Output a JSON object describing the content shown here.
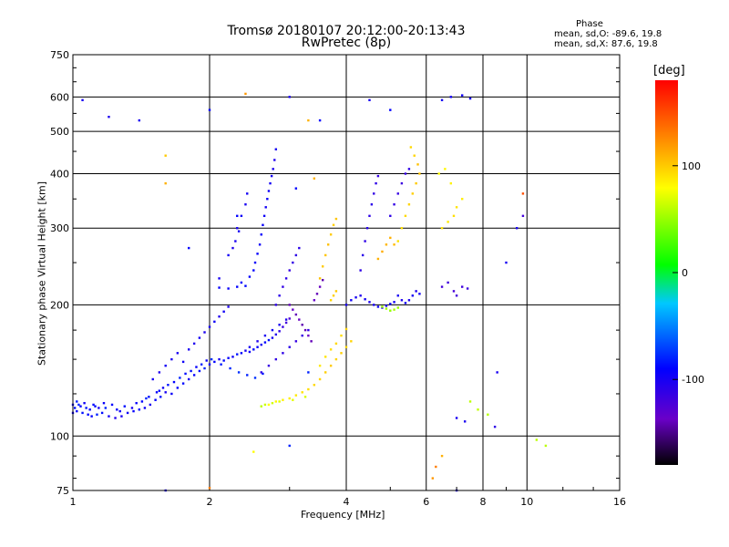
{
  "header": {
    "title_line1": "Tromsø 20180107 20:12:00-20:13:43",
    "title_line2": "RwPretec (8p)",
    "phase_heading": "Phase",
    "phase_o": "mean, sd,O: -89.6, 19.8",
    "phase_x": "mean, sd,X:  87.6, 19.8"
  },
  "colorbar": {
    "label": "[deg]",
    "ticks": [
      100,
      0,
      -100
    ],
    "range": [
      -180,
      180
    ],
    "colors": [
      "#000000",
      "#6a00c8",
      "#0000ff",
      "#00c8ff",
      "#00ff00",
      "#ffff00",
      "#ff8800",
      "#ff0000"
    ]
  },
  "chart_data": {
    "type": "scatter",
    "title": "Tromsø 20180107 20:12:00-20:13:43",
    "subtitle": "RwPretec (8p)",
    "xlabel": "Frequency [MHz]",
    "ylabel": "Stationary phase Virtual Height [km]",
    "x_scale": "log",
    "y_scale": "log",
    "xlim": [
      1,
      16
    ],
    "ylim": [
      75,
      750
    ],
    "x_ticks": [
      1,
      2,
      4,
      6,
      8,
      10,
      16
    ],
    "x_tick_labels": [
      "1",
      "2",
      "4",
      "6",
      "8",
      "10",
      "16"
    ],
    "y_ticks": [
      75,
      100,
      200,
      300,
      400,
      500,
      600,
      750
    ],
    "y_tick_labels": [
      "75",
      "100",
      "200",
      "300",
      "400",
      "500",
      "600",
      "750"
    ],
    "grid": true,
    "color_by": "phase [deg]",
    "points": [
      [
        1.0,
        113,
        -95
      ],
      [
        1.02,
        114,
        -90
      ],
      [
        1.05,
        113,
        -85
      ],
      [
        1.08,
        112,
        -88
      ],
      [
        1.1,
        111,
        -92
      ],
      [
        1.13,
        112,
        -80
      ],
      [
        1.16,
        113,
        -86
      ],
      [
        1.2,
        111,
        -98
      ],
      [
        1.24,
        110,
        -105
      ],
      [
        1.28,
        111,
        -100
      ],
      [
        1.32,
        113,
        -96
      ],
      [
        1.36,
        114,
        -92
      ],
      [
        1.4,
        115,
        -88
      ],
      [
        1.44,
        116,
        -95
      ],
      [
        1.48,
        118,
        -100
      ],
      [
        1.52,
        121,
        -90
      ],
      [
        1.56,
        123,
        -85
      ],
      [
        1.6,
        126,
        -100
      ],
      [
        1.65,
        125,
        -95
      ],
      [
        1.7,
        129,
        -90
      ],
      [
        1.75,
        132,
        -88
      ],
      [
        1.8,
        135,
        -100
      ],
      [
        1.85,
        138,
        -92
      ],
      [
        1.9,
        141,
        -86
      ],
      [
        1.95,
        143,
        -80
      ],
      [
        2.0,
        146,
        -95
      ],
      [
        2.05,
        148,
        -90
      ],
      [
        2.1,
        150,
        -100
      ],
      [
        2.15,
        149,
        -88
      ],
      [
        2.2,
        151,
        -92
      ],
      [
        2.25,
        152,
        -96
      ],
      [
        2.3,
        154,
        -84
      ],
      [
        2.35,
        155,
        -90
      ],
      [
        2.4,
        157,
        -100
      ],
      [
        2.45,
        156,
        -95
      ],
      [
        2.5,
        158,
        -88
      ],
      [
        2.55,
        160,
        -92
      ],
      [
        2.6,
        162,
        -98
      ],
      [
        2.65,
        164,
        -90
      ],
      [
        2.7,
        166,
        -85
      ],
      [
        2.75,
        168,
        -100
      ],
      [
        2.8,
        171,
        -105
      ],
      [
        2.85,
        174,
        -110
      ],
      [
        2.9,
        178,
        -115
      ],
      [
        2.95,
        182,
        -120
      ],
      [
        3.0,
        186,
        -125
      ],
      [
        1.03,
        118,
        -80
      ],
      [
        1.07,
        116,
        -84
      ],
      [
        1.12,
        117,
        -88
      ],
      [
        1.18,
        116,
        -80
      ],
      [
        1.25,
        115,
        -90
      ],
      [
        1.3,
        117,
        -86
      ],
      [
        1.38,
        119,
        -92
      ],
      [
        1.45,
        122,
        -80
      ],
      [
        1.55,
        127,
        -88
      ],
      [
        1.62,
        131,
        -84
      ],
      [
        1.72,
        136,
        -80
      ],
      [
        1.82,
        141,
        -86
      ],
      [
        1.92,
        146,
        -80
      ],
      [
        2.02,
        150,
        -76
      ],
      [
        2.12,
        146,
        -82
      ],
      [
        2.22,
        143,
        -78
      ],
      [
        2.32,
        140,
        -76
      ],
      [
        2.42,
        138,
        -80
      ],
      [
        2.52,
        136,
        -76
      ],
      [
        2.62,
        139,
        -84
      ],
      [
        1.5,
        135,
        -100
      ],
      [
        1.55,
        140,
        -104
      ],
      [
        1.6,
        145,
        -98
      ],
      [
        1.65,
        150,
        -102
      ],
      [
        1.7,
        155,
        -100
      ],
      [
        1.75,
        148,
        -96
      ],
      [
        1.8,
        158,
        -100
      ],
      [
        1.85,
        163,
        -104
      ],
      [
        1.9,
        168,
        -98
      ],
      [
        1.95,
        173,
        -102
      ],
      [
        2.0,
        178,
        -100
      ],
      [
        2.05,
        183,
        -96
      ],
      [
        2.1,
        188,
        -104
      ],
      [
        2.15,
        193,
        -98
      ],
      [
        2.2,
        198,
        -102
      ],
      [
        2.3,
        220,
        -90
      ],
      [
        2.2,
        218,
        -94
      ],
      [
        2.1,
        219,
        -92
      ],
      [
        2.4,
        221,
        -88
      ],
      [
        2.35,
        225,
        -90
      ],
      [
        2.45,
        232,
        -92
      ],
      [
        2.5,
        240,
        -90
      ],
      [
        2.52,
        250,
        -94
      ],
      [
        2.55,
        262,
        -92
      ],
      [
        2.58,
        275,
        -96
      ],
      [
        2.6,
        290,
        -92
      ],
      [
        2.62,
        305,
        -94
      ],
      [
        2.64,
        320,
        -96
      ],
      [
        2.66,
        335,
        -98
      ],
      [
        2.68,
        350,
        -94
      ],
      [
        2.7,
        365,
        -96
      ],
      [
        2.72,
        380,
        -98
      ],
      [
        2.74,
        395,
        -100
      ],
      [
        2.76,
        410,
        -102
      ],
      [
        2.78,
        430,
        -104
      ],
      [
        2.8,
        455,
        -100
      ],
      [
        2.3,
        300,
        -100
      ],
      [
        2.35,
        320,
        -96
      ],
      [
        2.4,
        340,
        -100
      ],
      [
        2.42,
        360,
        -98
      ],
      [
        2.28,
        280,
        -102
      ],
      [
        2.32,
        295,
        -100
      ],
      [
        2.2,
        260,
        -98
      ],
      [
        2.25,
        270,
        -104
      ],
      [
        2.8,
        200,
        -110
      ],
      [
        2.85,
        210,
        -108
      ],
      [
        2.9,
        220,
        -112
      ],
      [
        2.95,
        230,
        -110
      ],
      [
        3.0,
        240,
        -114
      ],
      [
        3.05,
        250,
        -112
      ],
      [
        3.1,
        260,
        -110
      ],
      [
        3.15,
        270,
        -108
      ],
      [
        3.0,
        200,
        -140
      ],
      [
        3.05,
        195,
        -135
      ],
      [
        3.1,
        190,
        -140
      ],
      [
        3.15,
        185,
        -138
      ],
      [
        3.2,
        180,
        -142
      ],
      [
        3.25,
        175,
        -140
      ],
      [
        3.3,
        170,
        -136
      ],
      [
        3.35,
        165,
        -140
      ],
      [
        3.4,
        205,
        -135
      ],
      [
        3.45,
        212,
        -140
      ],
      [
        3.5,
        220,
        -138
      ],
      [
        3.55,
        228,
        -142
      ],
      [
        2.7,
        118,
        80
      ],
      [
        2.8,
        120,
        82
      ],
      [
        2.9,
        121,
        84
      ],
      [
        3.0,
        122,
        86
      ],
      [
        3.1,
        124,
        88
      ],
      [
        3.2,
        126,
        90
      ],
      [
        3.3,
        128,
        92
      ],
      [
        3.4,
        131,
        94
      ],
      [
        3.5,
        135,
        96
      ],
      [
        3.6,
        140,
        98
      ],
      [
        3.7,
        145,
        100
      ],
      [
        3.8,
        150,
        96
      ],
      [
        3.9,
        155,
        98
      ],
      [
        4.0,
        160,
        94
      ],
      [
        4.1,
        165,
        96
      ],
      [
        3.5,
        145,
        88
      ],
      [
        3.6,
        152,
        90
      ],
      [
        3.7,
        158,
        92
      ],
      [
        3.8,
        163,
        94
      ],
      [
        3.9,
        170,
        92
      ],
      [
        4.0,
        176,
        96
      ],
      [
        2.6,
        117,
        60
      ],
      [
        2.65,
        118,
        64
      ],
      [
        2.75,
        119,
        66
      ],
      [
        2.85,
        120,
        70
      ],
      [
        3.05,
        121,
        72
      ],
      [
        3.25,
        123,
        68
      ],
      [
        3.5,
        230,
        104
      ],
      [
        3.55,
        245,
        100
      ],
      [
        3.6,
        260,
        102
      ],
      [
        3.65,
        275,
        104
      ],
      [
        3.7,
        290,
        100
      ],
      [
        3.75,
        305,
        98
      ],
      [
        3.8,
        315,
        102
      ],
      [
        3.7,
        205,
        95
      ],
      [
        3.75,
        210,
        98
      ],
      [
        3.8,
        215,
        100
      ],
      [
        4.0,
        200,
        -100
      ],
      [
        4.1,
        205,
        -96
      ],
      [
        4.2,
        208,
        -100
      ],
      [
        4.3,
        210,
        -104
      ],
      [
        4.4,
        206,
        -98
      ],
      [
        4.5,
        203,
        -102
      ],
      [
        4.6,
        200,
        -100
      ],
      [
        4.7,
        198,
        -96
      ],
      [
        4.8,
        197,
        -104
      ],
      [
        4.9,
        199,
        -100
      ],
      [
        5.0,
        201,
        -96
      ],
      [
        5.1,
        203,
        -98
      ],
      [
        4.3,
        240,
        -110
      ],
      [
        4.35,
        260,
        -108
      ],
      [
        4.4,
        280,
        -110
      ],
      [
        4.45,
        300,
        -106
      ],
      [
        4.5,
        320,
        -110
      ],
      [
        4.55,
        340,
        -108
      ],
      [
        4.6,
        360,
        -112
      ],
      [
        4.65,
        380,
        -110
      ],
      [
        4.7,
        395,
        -114
      ],
      [
        4.8,
        198,
        50
      ],
      [
        4.9,
        196,
        52
      ],
      [
        5.0,
        194,
        48
      ],
      [
        5.1,
        195,
        54
      ],
      [
        5.2,
        197,
        50
      ],
      [
        4.7,
        255,
        110
      ],
      [
        4.8,
        265,
        112
      ],
      [
        4.9,
        275,
        108
      ],
      [
        5.0,
        285,
        110
      ],
      [
        5.1,
        275,
        106
      ],
      [
        5.2,
        280,
        90
      ],
      [
        5.3,
        300,
        92
      ],
      [
        5.4,
        320,
        94
      ],
      [
        5.5,
        340,
        96
      ],
      [
        5.6,
        360,
        98
      ],
      [
        5.7,
        380,
        100
      ],
      [
        5.8,
        400,
        102
      ],
      [
        5.75,
        420,
        104
      ],
      [
        5.65,
        440,
        96
      ],
      [
        5.55,
        460,
        94
      ],
      [
        5.0,
        320,
        -110
      ],
      [
        5.1,
        340,
        -112
      ],
      [
        5.2,
        360,
        -114
      ],
      [
        5.3,
        380,
        -116
      ],
      [
        5.4,
        400,
        -112
      ],
      [
        5.5,
        410,
        -110
      ],
      [
        5.2,
        210,
        -100
      ],
      [
        5.3,
        205,
        -104
      ],
      [
        5.4,
        202,
        -98
      ],
      [
        5.5,
        205,
        -102
      ],
      [
        5.6,
        210,
        -100
      ],
      [
        5.7,
        215,
        -104
      ],
      [
        5.8,
        212,
        -98
      ],
      [
        6.5,
        220,
        -120
      ],
      [
        6.7,
        225,
        -118
      ],
      [
        6.9,
        215,
        -122
      ],
      [
        7.0,
        210,
        -120
      ],
      [
        7.2,
        220,
        -118
      ],
      [
        7.4,
        218,
        -116
      ],
      [
        6.5,
        300,
        90
      ],
      [
        6.7,
        310,
        88
      ],
      [
        6.9,
        320,
        92
      ],
      [
        7.0,
        335,
        90
      ],
      [
        7.2,
        350,
        86
      ],
      [
        6.4,
        400,
        80
      ],
      [
        6.6,
        410,
        82
      ],
      [
        6.8,
        380,
        84
      ],
      [
        6.5,
        590,
        -100
      ],
      [
        6.8,
        600,
        -98
      ],
      [
        7.2,
        605,
        -96
      ],
      [
        7.5,
        595,
        -100
      ],
      [
        7.5,
        120,
        60
      ],
      [
        7.8,
        115,
        62
      ],
      [
        8.2,
        112,
        58
      ],
      [
        7.0,
        110,
        -100
      ],
      [
        7.3,
        108,
        -102
      ],
      [
        1.05,
        590,
        -100
      ],
      [
        1.2,
        540,
        -102
      ],
      [
        1.4,
        530,
        -100
      ],
      [
        1.6,
        440,
        100
      ],
      [
        2.0,
        560,
        -90
      ],
      [
        2.4,
        610,
        120
      ],
      [
        3.0,
        600,
        -100
      ],
      [
        3.3,
        530,
        110
      ],
      [
        3.5,
        530,
        -90
      ],
      [
        4.5,
        590,
        -100
      ],
      [
        5.0,
        560,
        -90
      ],
      [
        1.6,
        380,
        110
      ],
      [
        1.8,
        270,
        -90
      ],
      [
        2.1,
        230,
        -100
      ],
      [
        2.3,
        320,
        -90
      ],
      [
        3.1,
        370,
        -90
      ],
      [
        3.4,
        390,
        110
      ],
      [
        3.3,
        140,
        -80
      ],
      [
        9.0,
        250,
        -100
      ],
      [
        9.5,
        300,
        -100
      ],
      [
        9.8,
        360,
        150
      ],
      [
        9.8,
        320,
        -120
      ],
      [
        10.5,
        98,
        60
      ],
      [
        11.0,
        95,
        60
      ],
      [
        8.5,
        105,
        -110
      ],
      [
        8.6,
        140,
        -100
      ],
      [
        6.2,
        80,
        120
      ],
      [
        6.3,
        85,
        130
      ],
      [
        6.5,
        90,
        110
      ],
      [
        7.0,
        75,
        -100
      ],
      [
        2.0,
        76,
        130
      ],
      [
        2.5,
        92,
        80
      ],
      [
        1.6,
        75,
        -100
      ],
      [
        3.0,
        95,
        -80
      ],
      [
        1.0,
        118,
        -90
      ],
      [
        1.01,
        116,
        -86
      ],
      [
        1.02,
        120,
        -82
      ],
      [
        1.04,
        117,
        -90
      ],
      [
        1.06,
        119,
        -96
      ],
      [
        1.09,
        115,
        -92
      ],
      [
        1.11,
        118,
        -88
      ],
      [
        1.14,
        116,
        -100
      ],
      [
        1.17,
        119,
        -94
      ],
      [
        1.22,
        118,
        -90
      ],
      [
        1.27,
        114,
        -96
      ],
      [
        1.35,
        116,
        -100
      ],
      [
        1.42,
        120,
        -90
      ],
      [
        1.47,
        123,
        -86
      ],
      [
        1.53,
        126,
        -92
      ],
      [
        1.58,
        129,
        -96
      ],
      [
        1.67,
        133,
        -90
      ],
      [
        1.77,
        139,
        -86
      ],
      [
        1.87,
        144,
        -92
      ],
      [
        1.97,
        149,
        -96
      ],
      [
        2.6,
        140,
        -110
      ],
      [
        2.7,
        145,
        -114
      ],
      [
        2.8,
        150,
        -112
      ],
      [
        2.9,
        155,
        -110
      ],
      [
        3.0,
        160,
        -108
      ],
      [
        3.1,
        165,
        -114
      ],
      [
        3.2,
        170,
        -112
      ],
      [
        3.3,
        175,
        -110
      ],
      [
        2.45,
        160,
        -100
      ],
      [
        2.55,
        165,
        -104
      ],
      [
        2.65,
        170,
        -102
      ],
      [
        2.75,
        175,
        -98
      ],
      [
        2.85,
        180,
        -100
      ],
      [
        2.95,
        185,
        -104
      ]
    ]
  }
}
